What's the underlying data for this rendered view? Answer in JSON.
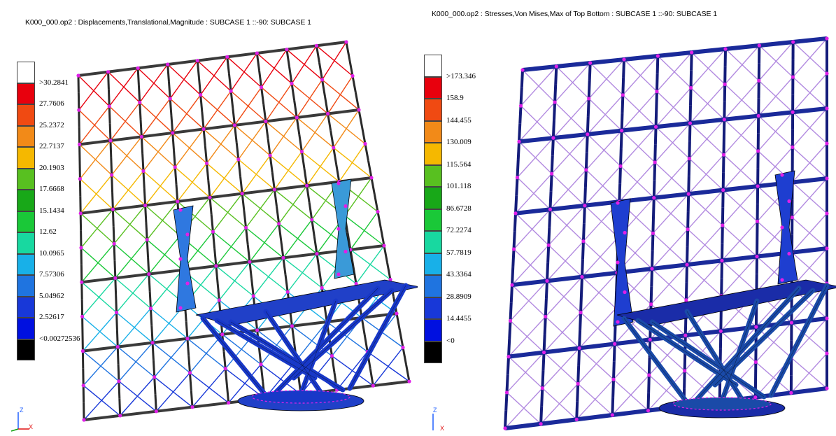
{
  "left": {
    "title": "K000_000.op2 : Displacements,Translational,Magnitude  : SUBCASE 1       ::-90: SUBCASE 1",
    "legend": {
      "labels": [
        ">30.2841",
        "27.7606",
        "25.2372",
        "22.7137",
        "20.1903",
        "17.6668",
        "15.1434",
        "12.62",
        "10.0965",
        "7.57306",
        "5.04962",
        "2.52617",
        "<0.00272536"
      ],
      "colors": [
        "#ffffff",
        "#e8000d",
        "#f04a12",
        "#f28a18",
        "#f5b800",
        "#58c020",
        "#18a818",
        "#1ac838",
        "#18d8a0",
        "#18b0e8",
        "#1f74e0",
        "#1838d8",
        "#0010e0",
        "#000000"
      ]
    },
    "triad": {
      "z": "Z",
      "x": "X"
    }
  },
  "right": {
    "title": "K000_000.op2 : Stresses,Von Mises,Max of Top Bottom  : SUBCASE 1       ::-90: SUBCASE 1",
    "legend": {
      "labels": [
        ">173.346",
        "158.9",
        "144.455",
        "130.009",
        "115.564",
        "101.118",
        "86.6728",
        "72.2274",
        "57.7819",
        "43.3364",
        "28.8909",
        "14.4455",
        "<0"
      ],
      "colors": [
        "#ffffff",
        "#e8000d",
        "#f04a12",
        "#f28a18",
        "#f5b800",
        "#58c020",
        "#18a818",
        "#1ac838",
        "#18d8a0",
        "#18b0e8",
        "#1f74e0",
        "#1838d8",
        "#0010e0",
        "#000000"
      ]
    },
    "triad": {
      "z": "Z",
      "x": "X"
    }
  }
}
